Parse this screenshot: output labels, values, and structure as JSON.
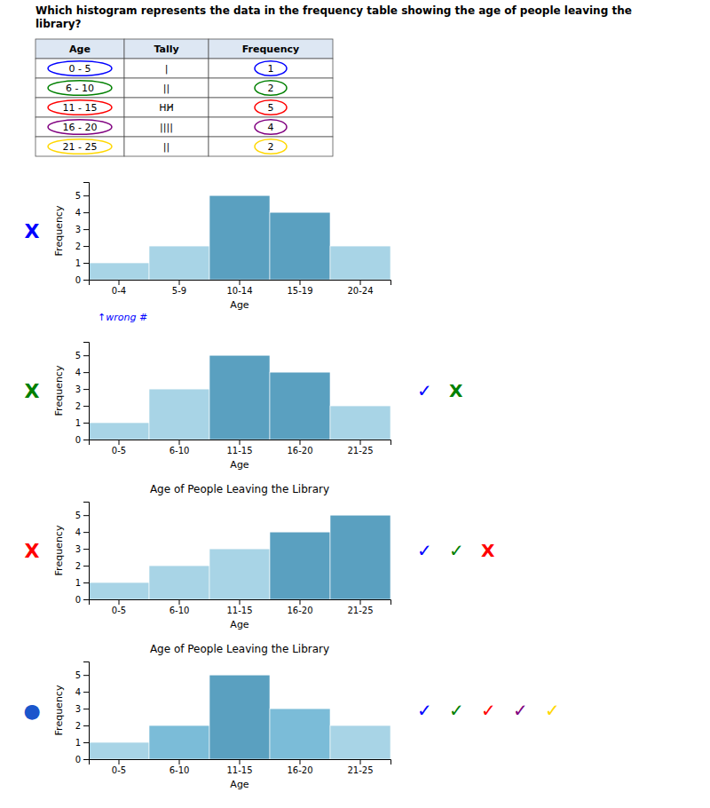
{
  "chart_data": [
    {
      "type": "table",
      "title": [
        "Which histogram represents the data in the frequency table showing the age of people leaving the",
        "library?"
      ],
      "xlabel": "Age",
      "categories": [
        "0 - 5",
        "6 - 10",
        "11 - 15",
        "16 - 20",
        "21 - 25"
      ],
      "series": [
        {
          "name": "Tally",
          "values": [
            "|",
            "||",
            "HH̸",
            "||||",
            "||"
          ]
        },
        {
          "name": "Frequency",
          "values": [
            1,
            2,
            5,
            4,
            2
          ]
        }
      ],
      "colors": [
        "blue",
        "green",
        "red",
        "purple",
        "gold"
      ]
    },
    {
      "type": "bar",
      "xlabel": "Age",
      "ylabel": "Frequency",
      "categories": [
        "0-4",
        "5-9",
        "10-14",
        "15-19",
        "20-24"
      ],
      "values": [
        1,
        2,
        5,
        4,
        2
      ],
      "colors": [
        "#a8d4e6",
        "#a8d4e6",
        "#5aa0c0",
        "#5aa0c0",
        "#a8d4e6"
      ],
      "ylim": [
        0,
        5.8
      ],
      "yticks": [
        0,
        1,
        2,
        3,
        4,
        5
      ],
      "grid": false,
      "annotations": [
        {
          "text": "X",
          "color": "blue"
        },
        {
          "text": "↑wrong #",
          "color": "blue"
        }
      ]
    },
    {
      "type": "bar",
      "xlabel": "Age",
      "ylabel": "Frequency",
      "categories": [
        "0-5",
        "6-10",
        "11-15",
        "16-20",
        "21-25"
      ],
      "values": [
        1,
        3,
        5,
        4,
        2
      ],
      "colors": [
        "#a8d4e6",
        "#a8d4e6",
        "#5aa0c0",
        "#5aa0c0",
        "#a8d4e6"
      ],
      "ylim": [
        0,
        5.8
      ],
      "yticks": [
        0,
        1,
        2,
        3,
        4,
        5
      ],
      "grid": false,
      "annotations": [
        {
          "text": "X",
          "color": "green"
        },
        {
          "text": "✓",
          "color": "blue"
        },
        {
          "text": "X",
          "color": "green"
        }
      ]
    },
    {
      "type": "bar",
      "title": "Age of People Leaving the Library",
      "xlabel": "Age",
      "ylabel": "Frequency",
      "categories": [
        "0-5",
        "6-10",
        "11-15",
        "16-20",
        "21-25"
      ],
      "values": [
        1,
        2,
        3,
        4,
        5
      ],
      "colors": [
        "#a8d4e6",
        "#a8d4e6",
        "#a8d4e6",
        "#5aa0c0",
        "#5aa0c0"
      ],
      "ylim": [
        0,
        5.8
      ],
      "yticks": [
        0,
        1,
        2,
        3,
        4,
        5
      ],
      "grid": false,
      "annotations": [
        {
          "text": "X",
          "color": "red"
        },
        {
          "text": "✓",
          "color": "blue"
        },
        {
          "text": "✓",
          "color": "green"
        },
        {
          "text": "X",
          "color": "red"
        }
      ]
    },
    {
      "type": "bar",
      "title": "Age of People Leaving the Library",
      "xlabel": "Age",
      "ylabel": "Frequency",
      "categories": [
        "0-5",
        "6-10",
        "11-15",
        "16-20",
        "21-25"
      ],
      "values": [
        1,
        2,
        5,
        3,
        2
      ],
      "colors": [
        "#a8d4e6",
        "#7bbcd8",
        "#5aa0c0",
        "#7bbcd8",
        "#a8d4e6"
      ],
      "ylim": [
        0,
        5.8
      ],
      "yticks": [
        0,
        1,
        2,
        3,
        4,
        5
      ],
      "grid": false,
      "annotations": [
        {
          "text": "●",
          "color": "#1a56cc"
        },
        {
          "text": "✓",
          "color": "blue"
        },
        {
          "text": "✓",
          "color": "green"
        },
        {
          "text": "✓",
          "color": "red"
        },
        {
          "text": "✓",
          "color": "purple"
        },
        {
          "text": "✓",
          "color": "gold"
        }
      ]
    }
  ]
}
